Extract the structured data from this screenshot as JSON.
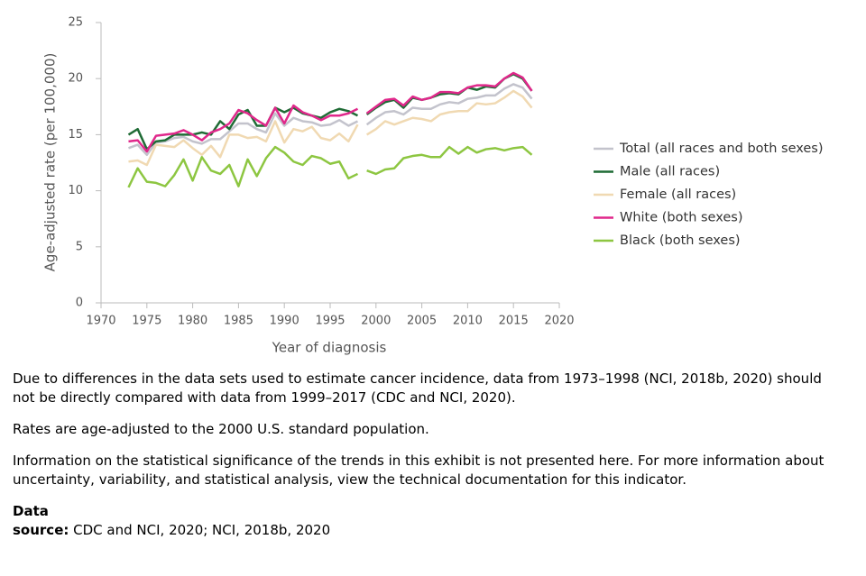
{
  "chart_data": {
    "type": "line",
    "ylabel": "Age-adjusted rate (per 100,000)",
    "xlabel": "Year of diagnosis",
    "xlim": [
      1970,
      2020
    ],
    "xticks": [
      1970,
      1975,
      1980,
      1985,
      1990,
      1995,
      2000,
      2005,
      2010,
      2015,
      2020
    ],
    "ylim": [
      0,
      25
    ],
    "yticks": [
      0,
      5,
      10,
      15,
      20,
      25
    ],
    "grid": false,
    "legend": "right",
    "break_before": 1999,
    "x": [
      1973,
      1974,
      1975,
      1976,
      1977,
      1978,
      1979,
      1980,
      1981,
      1982,
      1983,
      1984,
      1985,
      1986,
      1987,
      1988,
      1989,
      1990,
      1991,
      1992,
      1993,
      1994,
      1995,
      1996,
      1997,
      1998,
      1999,
      2000,
      2001,
      2002,
      2003,
      2004,
      2005,
      2006,
      2007,
      2008,
      2009,
      2010,
      2011,
      2012,
      2013,
      2014,
      2015,
      2016,
      2017
    ],
    "series": [
      {
        "name": "Total (all races and both sexes)",
        "color": "#c3c3cc",
        "values": [
          13.8,
          14.1,
          13.2,
          14.3,
          14.4,
          14.7,
          14.8,
          14.4,
          14.2,
          14.6,
          14.6,
          15.3,
          16.0,
          16.0,
          15.5,
          15.2,
          16.9,
          15.8,
          16.5,
          16.2,
          16.1,
          15.8,
          15.9,
          16.3,
          15.8,
          16.2,
          15.9,
          16.5,
          17.0,
          17.1,
          16.8,
          17.4,
          17.3,
          17.3,
          17.7,
          17.9,
          17.8,
          18.2,
          18.3,
          18.5,
          18.5,
          19.1,
          19.5,
          19.2,
          18.2
        ]
      },
      {
        "name": "Male (all races)",
        "color": "#1f6b35",
        "values": [
          15.0,
          15.5,
          13.7,
          14.4,
          14.5,
          15.0,
          15.0,
          15.0,
          15.2,
          15.0,
          16.2,
          15.5,
          16.8,
          17.2,
          15.8,
          15.8,
          17.4,
          17.0,
          17.4,
          16.9,
          16.7,
          16.5,
          17.0,
          17.3,
          17.1,
          16.7,
          16.8,
          17.4,
          17.9,
          18.1,
          17.4,
          18.3,
          18.1,
          18.3,
          18.6,
          18.7,
          18.6,
          19.2,
          19.0,
          19.3,
          19.2,
          20.0,
          20.4,
          20.0,
          18.9
        ]
      },
      {
        "name": "Female (all races)",
        "color": "#f0d9b2",
        "values": [
          12.6,
          12.7,
          12.3,
          14.1,
          14.0,
          13.9,
          14.5,
          13.8,
          13.2,
          14.0,
          13.0,
          15.0,
          15.0,
          14.7,
          14.8,
          14.4,
          16.2,
          14.3,
          15.5,
          15.3,
          15.7,
          14.7,
          14.5,
          15.1,
          14.4,
          15.9,
          15.0,
          15.5,
          16.2,
          15.9,
          16.2,
          16.5,
          16.4,
          16.2,
          16.8,
          17.0,
          17.1,
          17.1,
          17.8,
          17.7,
          17.8,
          18.3,
          18.9,
          18.4,
          17.4
        ]
      },
      {
        "name": "White (both sexes)",
        "color": "#e0288b",
        "values": [
          14.4,
          14.5,
          13.5,
          14.9,
          15.0,
          15.1,
          15.4,
          15.0,
          14.5,
          15.2,
          15.5,
          16.0,
          17.2,
          16.9,
          16.3,
          15.8,
          17.4,
          16.0,
          17.6,
          17.0,
          16.7,
          16.3,
          16.7,
          16.7,
          16.9,
          17.3,
          16.9,
          17.5,
          18.1,
          18.2,
          17.6,
          18.4,
          18.1,
          18.3,
          18.8,
          18.8,
          18.7,
          19.2,
          19.4,
          19.4,
          19.3,
          20.0,
          20.5,
          20.1,
          18.9
        ]
      },
      {
        "name": "Black (both sexes)",
        "color": "#8dc641",
        "values": [
          10.3,
          12.0,
          10.8,
          10.7,
          10.4,
          11.4,
          12.8,
          10.9,
          13.0,
          11.8,
          11.5,
          12.3,
          10.4,
          12.8,
          11.3,
          12.9,
          13.9,
          13.4,
          12.6,
          12.3,
          13.1,
          12.9,
          12.4,
          12.6,
          11.1,
          11.5,
          11.8,
          11.5,
          11.9,
          12.0,
          12.9,
          13.1,
          13.2,
          13.0,
          13.0,
          13.9,
          13.3,
          13.9,
          13.4,
          13.7,
          13.8,
          13.6,
          13.8,
          13.9,
          13.2
        ]
      }
    ]
  },
  "notes": [
    "Due to differences in the data sets used to estimate cancer incidence, data from 1973–1998 (NCI, 2018b, 2020) should not be directly compared with data from 1999–2017 (CDC and NCI, 2020).",
    "Rates are age-adjusted to the 2000 U.S. standard population.",
    "Information on the statistical significance of the trends in this exhibit is not presented here. For more information about uncertainty, variability, and statistical analysis, view the technical documentation for this indicator."
  ],
  "source_heading": "Data",
  "source_label": "source:",
  "source_text": "CDC and NCI, 2020; NCI, 2018b, 2020"
}
